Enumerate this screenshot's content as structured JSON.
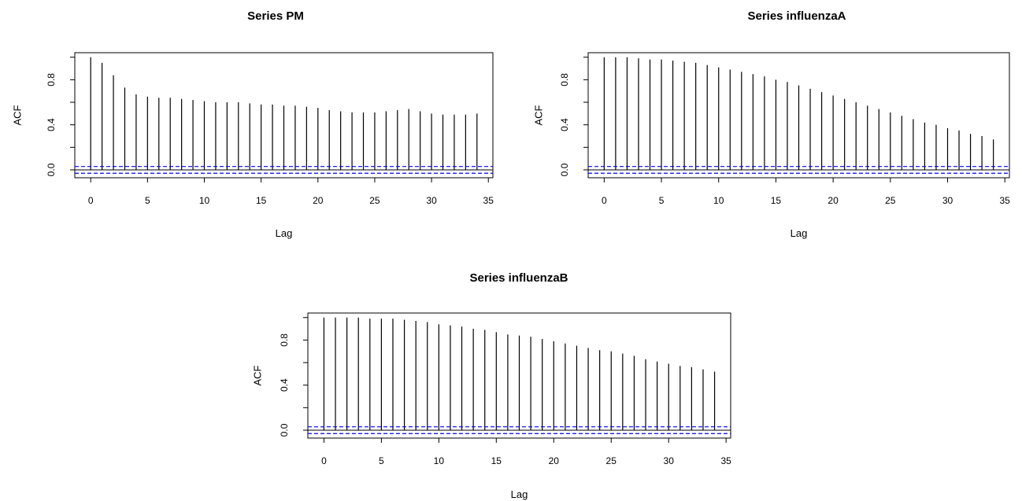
{
  "chart_data": [
    {
      "type": "bar",
      "title": "Series  PM",
      "xlabel": "Lag",
      "ylabel": "ACF",
      "xlim": [
        0,
        35
      ],
      "ylim": [
        0,
        1
      ],
      "x_ticks": [
        "0",
        "5",
        "10",
        "15",
        "20",
        "25",
        "30",
        "35"
      ],
      "y_ticks": [
        "0.0",
        "0.4",
        "0.8"
      ],
      "conf_bound": 0.03,
      "lags": [
        0,
        1,
        2,
        3,
        4,
        5,
        6,
        7,
        8,
        9,
        10,
        11,
        12,
        13,
        14,
        15,
        16,
        17,
        18,
        19,
        20,
        21,
        22,
        23,
        24,
        25,
        26,
        27,
        28,
        29,
        30,
        31,
        32,
        33,
        34
      ],
      "values": [
        1.0,
        0.95,
        0.84,
        0.73,
        0.67,
        0.65,
        0.64,
        0.64,
        0.63,
        0.62,
        0.61,
        0.6,
        0.6,
        0.6,
        0.59,
        0.58,
        0.58,
        0.57,
        0.57,
        0.56,
        0.55,
        0.53,
        0.52,
        0.51,
        0.51,
        0.51,
        0.52,
        0.53,
        0.54,
        0.52,
        0.5,
        0.49,
        0.49,
        0.49,
        0.5
      ]
    },
    {
      "type": "bar",
      "title": "Series  influenzaA",
      "xlabel": "Lag",
      "ylabel": "ACF",
      "xlim": [
        0,
        35
      ],
      "ylim": [
        0,
        1
      ],
      "x_ticks": [
        "0",
        "5",
        "10",
        "15",
        "20",
        "25",
        "30",
        "35"
      ],
      "y_ticks": [
        "0.0",
        "0.4",
        "0.8"
      ],
      "conf_bound": 0.03,
      "lags": [
        0,
        1,
        2,
        3,
        4,
        5,
        6,
        7,
        8,
        9,
        10,
        11,
        12,
        13,
        14,
        15,
        16,
        17,
        18,
        19,
        20,
        21,
        22,
        23,
        24,
        25,
        26,
        27,
        28,
        29,
        30,
        31,
        32,
        33,
        34
      ],
      "values": [
        1.0,
        1.0,
        1.0,
        0.99,
        0.98,
        0.98,
        0.97,
        0.96,
        0.95,
        0.93,
        0.91,
        0.89,
        0.87,
        0.85,
        0.83,
        0.8,
        0.78,
        0.75,
        0.72,
        0.69,
        0.66,
        0.63,
        0.6,
        0.57,
        0.54,
        0.51,
        0.48,
        0.45,
        0.42,
        0.4,
        0.37,
        0.35,
        0.32,
        0.3,
        0.27
      ]
    },
    {
      "type": "bar",
      "title": "Series  influenzaB",
      "xlabel": "Lag",
      "ylabel": "ACF",
      "xlim": [
        0,
        35
      ],
      "ylim": [
        0,
        1
      ],
      "x_ticks": [
        "0",
        "5",
        "10",
        "15",
        "20",
        "25",
        "30",
        "35"
      ],
      "y_ticks": [
        "0.0",
        "0.4",
        "0.8"
      ],
      "conf_bound": 0.03,
      "lags": [
        0,
        1,
        2,
        3,
        4,
        5,
        6,
        7,
        8,
        9,
        10,
        11,
        12,
        13,
        14,
        15,
        16,
        17,
        18,
        19,
        20,
        21,
        22,
        23,
        24,
        25,
        26,
        27,
        28,
        29,
        30,
        31,
        32,
        33,
        34
      ],
      "values": [
        1.0,
        1.0,
        1.0,
        1.0,
        0.99,
        0.99,
        0.99,
        0.98,
        0.97,
        0.96,
        0.94,
        0.93,
        0.92,
        0.9,
        0.89,
        0.87,
        0.85,
        0.84,
        0.83,
        0.81,
        0.79,
        0.77,
        0.75,
        0.73,
        0.71,
        0.7,
        0.68,
        0.66,
        0.63,
        0.61,
        0.59,
        0.57,
        0.56,
        0.54,
        0.52
      ]
    }
  ],
  "colors": {
    "bars": "#000000",
    "ci_lines": "#0000ff",
    "frame": "#000000"
  }
}
